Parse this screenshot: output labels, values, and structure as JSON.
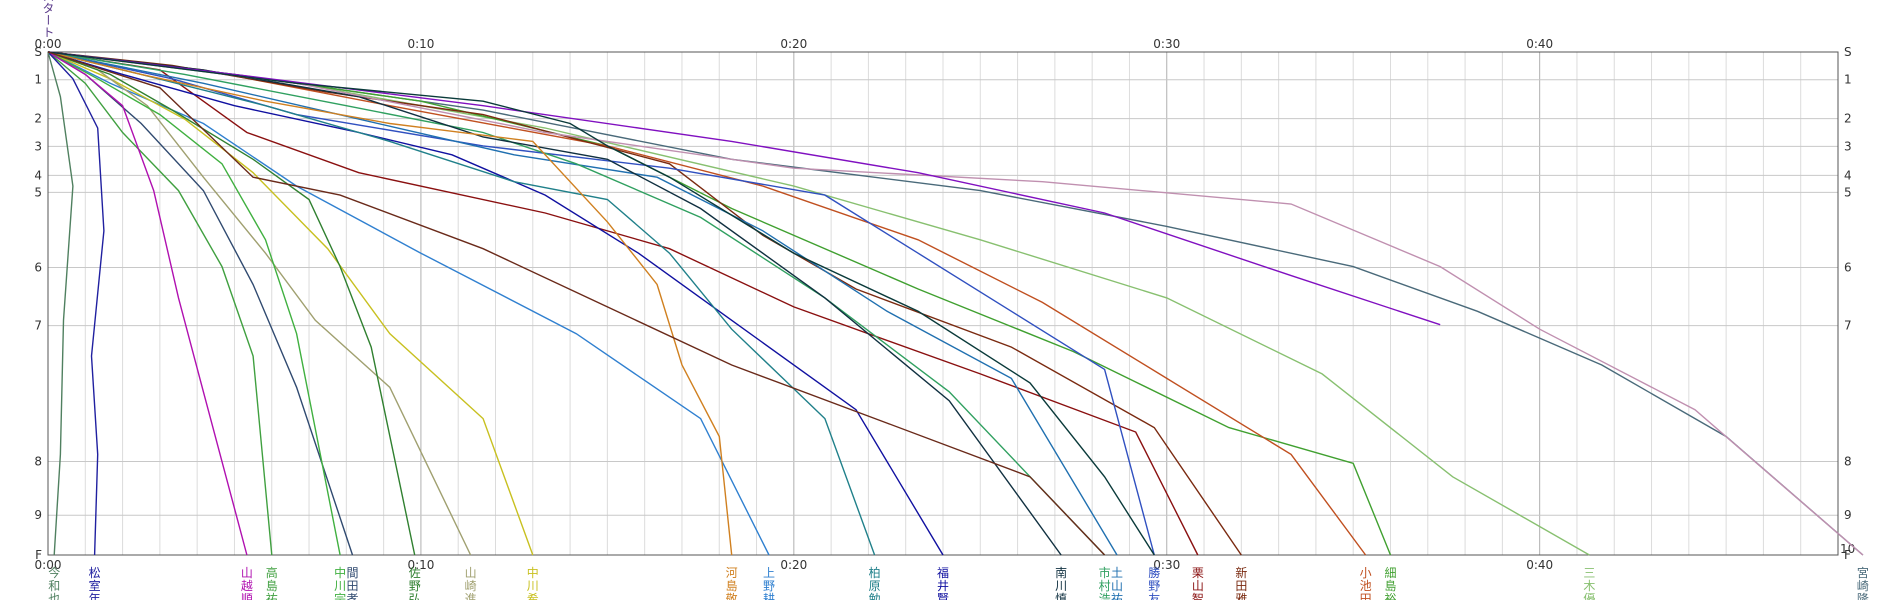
{
  "chart_data": {
    "type": "line",
    "title": "",
    "xlabel": "",
    "ylabel": "",
    "grid": true,
    "x_axis": {
      "min_seconds": 0,
      "max_seconds": 2880,
      "ticks": [
        {
          "s": 0,
          "label": "0:00"
        },
        {
          "s": 600,
          "label": "0:10"
        },
        {
          "s": 1200,
          "label": "0:20"
        },
        {
          "s": 1800,
          "label": "0:30"
        },
        {
          "s": 2400,
          "label": "0:40"
        }
      ]
    },
    "y_axis": {
      "stations": [
        {
          "label": "S",
          "pos": 0.0
        },
        {
          "label": "1",
          "pos": 0.062
        },
        {
          "label": "2",
          "pos": 0.149
        },
        {
          "label": "3",
          "pos": 0.211
        },
        {
          "label": "4",
          "pos": 0.276
        },
        {
          "label": "5",
          "pos": 0.314
        },
        {
          "label": "6",
          "pos": 0.482
        },
        {
          "label": "7",
          "pos": 0.612
        },
        {
          "label": "8",
          "pos": 0.916
        },
        {
          "label": "9",
          "pos": 1.036
        },
        {
          "label": "10",
          "pos": 1.125
        }
      ],
      "end_label": "F"
    },
    "top_label": "スタート",
    "series": [
      {
        "name": "宮崎",
        "name2": "隆",
        "color": "#4a6a7a",
        "pts": [
          [
            0,
            0
          ],
          [
            300,
            0.05
          ],
          [
            700,
            0.13
          ],
          [
            1100,
            0.24
          ],
          [
            1500,
            0.31
          ],
          [
            1800,
            0.39
          ],
          [
            2100,
            0.48
          ],
          [
            2300,
            0.58
          ],
          [
            2500,
            0.7
          ],
          [
            2700,
            0.86
          ],
          [
            2920,
            1.125
          ]
        ]
      },
      {
        "name": "三木",
        "name2": "優",
        "color": "#88c070",
        "pts": [
          [
            0,
            0
          ],
          [
            400,
            0.07
          ],
          [
            800,
            0.17
          ],
          [
            1200,
            0.3
          ],
          [
            1500,
            0.42
          ],
          [
            1800,
            0.55
          ],
          [
            2050,
            0.72
          ],
          [
            2260,
            0.95
          ],
          [
            2480,
            1.125
          ]
        ]
      },
      {
        "name": "細島",
        "name2": "裕",
        "color": "#40a030",
        "pts": [
          [
            0,
            0
          ],
          [
            300,
            0.05
          ],
          [
            600,
            0.11
          ],
          [
            900,
            0.21
          ],
          [
            1100,
            0.35
          ],
          [
            1400,
            0.53
          ],
          [
            1650,
            0.67
          ],
          [
            1900,
            0.84
          ],
          [
            2100,
            0.92
          ],
          [
            2160,
            1.125
          ]
        ]
      },
      {
        "name": "小池",
        "name2": "田",
        "color": "#c05020",
        "pts": [
          [
            0,
            0
          ],
          [
            250,
            0.04
          ],
          [
            550,
            0.12
          ],
          [
            900,
            0.21
          ],
          [
            1150,
            0.3
          ],
          [
            1400,
            0.42
          ],
          [
            1600,
            0.56
          ],
          [
            1800,
            0.73
          ],
          [
            2000,
            0.9
          ],
          [
            2120,
            1.125
          ]
        ]
      },
      {
        "name": "新田",
        "name2": "雅",
        "color": "#7a2a10",
        "pts": [
          [
            0,
            0
          ],
          [
            200,
            0.03
          ],
          [
            450,
            0.09
          ],
          [
            700,
            0.14
          ],
          [
            1000,
            0.25
          ],
          [
            1150,
            0.41
          ],
          [
            1300,
            0.53
          ],
          [
            1550,
            0.66
          ],
          [
            1780,
            0.84
          ],
          [
            1920,
            1.125
          ]
        ]
      },
      {
        "name": "栗山",
        "name2": "智",
        "color": "#8a1010",
        "pts": [
          [
            0,
            0
          ],
          [
            180,
            0.04
          ],
          [
            320,
            0.18
          ],
          [
            500,
            0.27
          ],
          [
            800,
            0.36
          ],
          [
            1000,
            0.44
          ],
          [
            1200,
            0.57
          ],
          [
            1500,
            0.72
          ],
          [
            1750,
            0.85
          ],
          [
            1850,
            1.125
          ]
        ]
      },
      {
        "name": "勝野",
        "name2": "友",
        "color": "#3050c0",
        "pts": [
          [
            0,
            0
          ],
          [
            200,
            0.06
          ],
          [
            400,
            0.14
          ],
          [
            700,
            0.21
          ],
          [
            1000,
            0.26
          ],
          [
            1250,
            0.32
          ],
          [
            1400,
            0.45
          ],
          [
            1550,
            0.58
          ],
          [
            1700,
            0.71
          ],
          [
            1780,
            1.125
          ]
        ]
      },
      {
        "name": "土山",
        "name2": "祐",
        "color": "#2070b0",
        "pts": [
          [
            0,
            0
          ],
          [
            250,
            0.07
          ],
          [
            500,
            0.15
          ],
          [
            750,
            0.23
          ],
          [
            980,
            0.28
          ],
          [
            1150,
            0.4
          ],
          [
            1350,
            0.58
          ],
          [
            1550,
            0.73
          ],
          [
            1720,
            1.125
          ]
        ]
      },
      {
        "name": "市村",
        "name2": "浩",
        "color": "#30a060",
        "pts": [
          [
            0,
            0
          ],
          [
            220,
            0.05
          ],
          [
            480,
            0.12
          ],
          [
            700,
            0.18
          ],
          [
            850,
            0.25
          ],
          [
            1050,
            0.37
          ],
          [
            1250,
            0.55
          ],
          [
            1450,
            0.76
          ],
          [
            1700,
            1.125
          ]
        ]
      },
      {
        "name": "南川",
        "name2": "慎",
        "color": "#103040",
        "pts": [
          [
            0,
            0
          ],
          [
            250,
            0.04
          ],
          [
            500,
            0.1
          ],
          [
            700,
            0.19
          ],
          [
            900,
            0.24
          ],
          [
            1050,
            0.35
          ],
          [
            1250,
            0.55
          ],
          [
            1450,
            0.78
          ],
          [
            1630,
            1.125
          ]
        ]
      },
      {
        "name": "福井",
        "name2": "賢",
        "color": "#1010a0",
        "pts": [
          [
            0,
            0
          ],
          [
            120,
            0.05
          ],
          [
            300,
            0.12
          ],
          [
            500,
            0.18
          ],
          [
            650,
            0.23
          ],
          [
            800,
            0.32
          ],
          [
            950,
            0.45
          ],
          [
            1100,
            0.6
          ],
          [
            1300,
            0.8
          ],
          [
            1440,
            1.125
          ]
        ]
      },
      {
        "name": "柏原",
        "name2": "勉",
        "color": "#20808a",
        "pts": [
          [
            0,
            0
          ],
          [
            150,
            0.05
          ],
          [
            350,
            0.12
          ],
          [
            550,
            0.2
          ],
          [
            750,
            0.29
          ],
          [
            900,
            0.33
          ],
          [
            1000,
            0.45
          ],
          [
            1100,
            0.62
          ],
          [
            1250,
            0.82
          ],
          [
            1330,
            1.125
          ]
        ]
      },
      {
        "name": "上野",
        "name2": "耕",
        "color": "#3080d0",
        "pts": [
          [
            0,
            0
          ],
          [
            100,
            0.07
          ],
          [
            250,
            0.16
          ],
          [
            400,
            0.3
          ],
          [
            600,
            0.45
          ],
          [
            850,
            0.63
          ],
          [
            1050,
            0.82
          ],
          [
            1160,
            1.125
          ]
        ]
      },
      {
        "name": "河島",
        "name2": "敬",
        "color": "#d08020",
        "pts": [
          [
            0,
            0
          ],
          [
            150,
            0.05
          ],
          [
            350,
            0.11
          ],
          [
            550,
            0.16
          ],
          [
            780,
            0.2
          ],
          [
            900,
            0.38
          ],
          [
            980,
            0.52
          ],
          [
            1020,
            0.7
          ],
          [
            1080,
            0.86
          ],
          [
            1100,
            1.125
          ]
        ]
      },
      {
        "name": "中川",
        "name2": "希",
        "color": "#c8c020",
        "pts": [
          [
            0,
            0
          ],
          [
            100,
            0.06
          ],
          [
            220,
            0.15
          ],
          [
            330,
            0.27
          ],
          [
            450,
            0.44
          ],
          [
            550,
            0.63
          ],
          [
            700,
            0.82
          ],
          [
            780,
            1.125
          ]
        ]
      },
      {
        "name": "山崎",
        "name2": "進",
        "color": "#a0a070",
        "pts": [
          [
            0,
            0
          ],
          [
            80,
            0.04
          ],
          [
            160,
            0.12
          ],
          [
            250,
            0.28
          ],
          [
            350,
            0.45
          ],
          [
            430,
            0.6
          ],
          [
            550,
            0.75
          ],
          [
            680,
            1.125
          ]
        ]
      },
      {
        "name": "佐野",
        "name2": "弘",
        "color": "#308030",
        "pts": [
          [
            0,
            0
          ],
          [
            100,
            0.05
          ],
          [
            200,
            0.13
          ],
          [
            330,
            0.24
          ],
          [
            420,
            0.33
          ],
          [
            470,
            0.48
          ],
          [
            520,
            0.66
          ],
          [
            590,
            1.125
          ]
        ]
      },
      {
        "name": "間田",
        "name2": "孝",
        "color": "#304a70",
        "pts": [
          [
            0,
            0
          ],
          [
            60,
            0.05
          ],
          [
            150,
            0.16
          ],
          [
            250,
            0.31
          ],
          [
            330,
            0.52
          ],
          [
            400,
            0.75
          ],
          [
            490,
            1.125
          ]
        ]
      },
      {
        "name": "中川",
        "name2": "宗",
        "color": "#40b040",
        "pts": [
          [
            0,
            0
          ],
          [
            80,
            0.06
          ],
          [
            180,
            0.14
          ],
          [
            280,
            0.25
          ],
          [
            350,
            0.42
          ],
          [
            400,
            0.63
          ],
          [
            470,
            1.125
          ]
        ]
      },
      {
        "name": "高島",
        "name2": "祐",
        "color": "#40a040",
        "pts": [
          [
            0,
            0
          ],
          [
            60,
            0.07
          ],
          [
            120,
            0.18
          ],
          [
            210,
            0.31
          ],
          [
            280,
            0.48
          ],
          [
            330,
            0.68
          ],
          [
            360,
            1.125
          ]
        ]
      },
      {
        "name": "山越",
        "name2": "順",
        "color": "#b010b0",
        "pts": [
          [
            0,
            0
          ],
          [
            60,
            0.05
          ],
          [
            120,
            0.12
          ],
          [
            170,
            0.31
          ],
          [
            210,
            0.55
          ],
          [
            250,
            0.76
          ],
          [
            320,
            1.125
          ]
        ]
      },
      {
        "name": "松室",
        "name2": "年",
        "color": "#2020a0",
        "pts": [
          [
            0,
            0
          ],
          [
            40,
            0.06
          ],
          [
            80,
            0.17
          ],
          [
            90,
            0.4
          ],
          [
            70,
            0.68
          ],
          [
            80,
            0.9
          ],
          [
            75,
            1.125
          ]
        ]
      },
      {
        "name": "今和",
        "name2": "也",
        "color": "#508060",
        "pts": [
          [
            0,
            0
          ],
          [
            20,
            0.1
          ],
          [
            40,
            0.3
          ],
          [
            25,
            0.6
          ],
          [
            20,
            0.9
          ],
          [
            10,
            1.125
          ]
        ]
      },
      {
        "name": "",
        "name2": "",
        "color": "#c090b0",
        "pts": [
          [
            0,
            0
          ],
          [
            400,
            0.07
          ],
          [
            800,
            0.18
          ],
          [
            1200,
            0.26
          ],
          [
            1600,
            0.29
          ],
          [
            2000,
            0.34
          ],
          [
            2240,
            0.48
          ],
          [
            2400,
            0.62
          ],
          [
            2650,
            0.8
          ],
          [
            2920,
            1.125
          ]
        ]
      },
      {
        "name": "",
        "name2": "",
        "color": "#8010c0",
        "pts": [
          [
            0,
            0
          ],
          [
            300,
            0.05
          ],
          [
            700,
            0.12
          ],
          [
            1100,
            0.2
          ],
          [
            1400,
            0.27
          ],
          [
            1700,
            0.36
          ],
          [
            2000,
            0.5
          ],
          [
            2240,
            0.61
          ]
        ]
      },
      {
        "name": "",
        "name2": "",
        "color": "#0a3a3a",
        "pts": [
          [
            0,
            0
          ],
          [
            400,
            0.07
          ],
          [
            700,
            0.11
          ],
          [
            840,
            0.16
          ],
          [
            900,
            0.21
          ],
          [
            1000,
            0.28
          ],
          [
            1200,
            0.45
          ],
          [
            1400,
            0.58
          ],
          [
            1580,
            0.74
          ],
          [
            1700,
            0.95
          ],
          [
            1780,
            1.125
          ]
        ]
      },
      {
        "name": "",
        "name2": "",
        "color": "#6a2a1a",
        "pts": [
          [
            0,
            0
          ],
          [
            180,
            0.08
          ],
          [
            330,
            0.28
          ],
          [
            470,
            0.32
          ],
          [
            700,
            0.44
          ],
          [
            900,
            0.57
          ],
          [
            1100,
            0.7
          ],
          [
            1350,
            0.83
          ],
          [
            1580,
            0.95
          ],
          [
            1700,
            1.125
          ]
        ]
      }
    ],
    "bottom_tick_extra": "10"
  }
}
